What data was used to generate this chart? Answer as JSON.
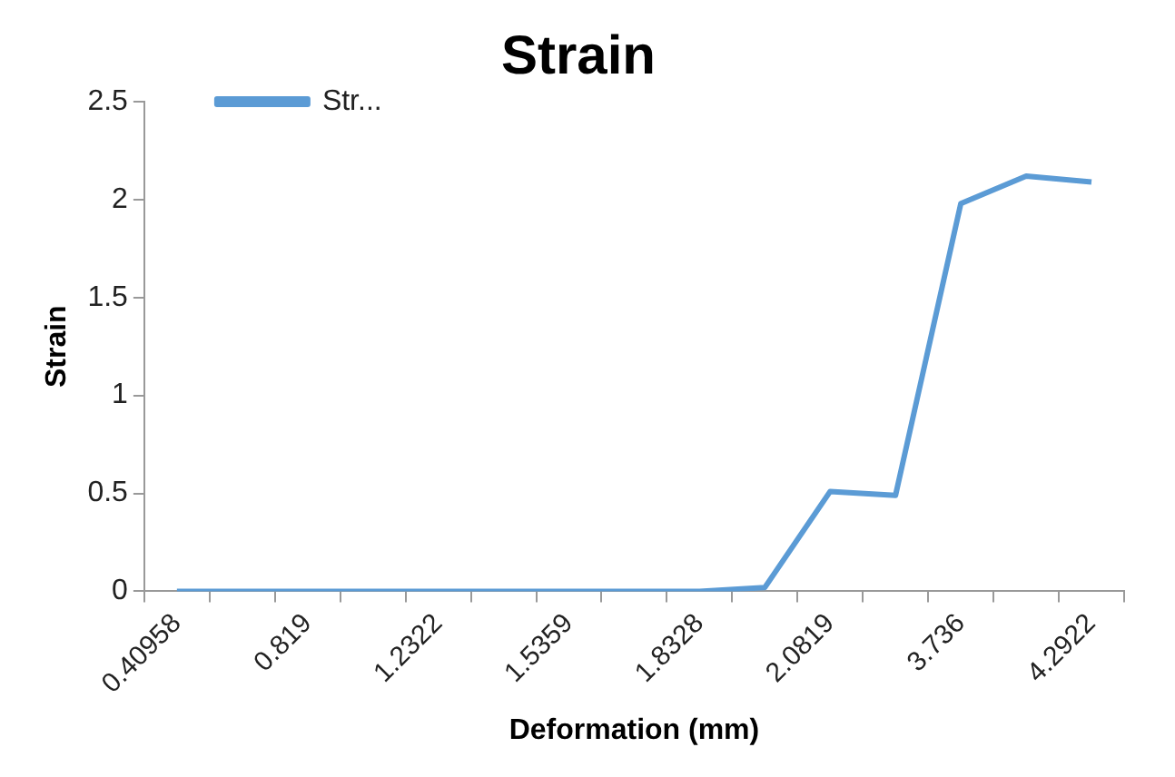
{
  "chart_data": {
    "type": "line",
    "title": "Strain",
    "xlabel": "Deformation (mm)",
    "ylabel": "Strain",
    "categories": [
      "0.40958",
      null,
      "0.819",
      null,
      "1.2322",
      null,
      "1.5359",
      null,
      "1.8328",
      null,
      "2.0819",
      null,
      "3.736",
      null,
      "4.2922"
    ],
    "series": [
      {
        "name": "Str...",
        "color": "#5b9bd5",
        "values": [
          0,
          0,
          0,
          0,
          0,
          0,
          0,
          0,
          0,
          0.02,
          0.51,
          0.49,
          1.98,
          2.12,
          2.09
        ]
      }
    ],
    "ylim": [
      0,
      2.5
    ],
    "yticks": [
      0,
      0.5,
      1,
      1.5,
      2,
      2.5
    ],
    "legend": "top left",
    "marker": "none",
    "line_style": "solid"
  }
}
